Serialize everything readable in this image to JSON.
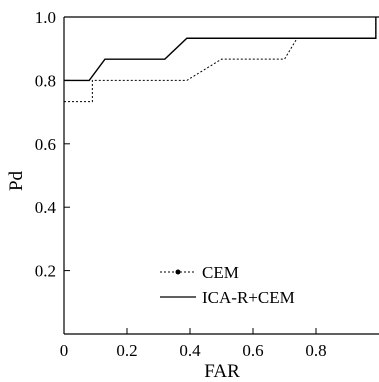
{
  "chart_data": {
    "type": "line",
    "xlabel": "FAR",
    "ylabel": "Pd",
    "xlim": [
      0,
      1
    ],
    "ylim": [
      0,
      1
    ],
    "xticks": [
      {
        "value": 0,
        "label": "0"
      },
      {
        "value": 0.2,
        "label": "0.2"
      },
      {
        "value": 0.4,
        "label": "0.4"
      },
      {
        "value": 0.6,
        "label": "0.6"
      },
      {
        "value": 0.8,
        "label": "0.8"
      }
    ],
    "yticks": [
      {
        "value": 0.2,
        "label": "0.2"
      },
      {
        "value": 0.4,
        "label": "0.4"
      },
      {
        "value": 0.6,
        "label": "0.6"
      },
      {
        "value": 0.8,
        "label": "0.8"
      },
      {
        "value": 1.0,
        "label": "1.0"
      }
    ],
    "legend_position": "bottom-right",
    "series": [
      {
        "name": "CEM",
        "style": "dashed-dot-marker",
        "x": [
          0,
          0.09,
          0.09,
          0.39,
          0.5,
          0.7,
          0.74,
          0.74,
          0.99,
          0.99
        ],
        "y": [
          0.733,
          0.733,
          0.8,
          0.8,
          0.867,
          0.867,
          0.933,
          0.933,
          0.933,
          1.0
        ]
      },
      {
        "name": "ICA-R+CEM",
        "style": "solid",
        "x": [
          0,
          0.08,
          0.13,
          0.32,
          0.39,
          0.99,
          0.99
        ],
        "y": [
          0.8,
          0.8,
          0.867,
          0.867,
          0.933,
          0.933,
          1.0
        ]
      }
    ],
    "top_border_line": {
      "y": 1.0
    }
  }
}
